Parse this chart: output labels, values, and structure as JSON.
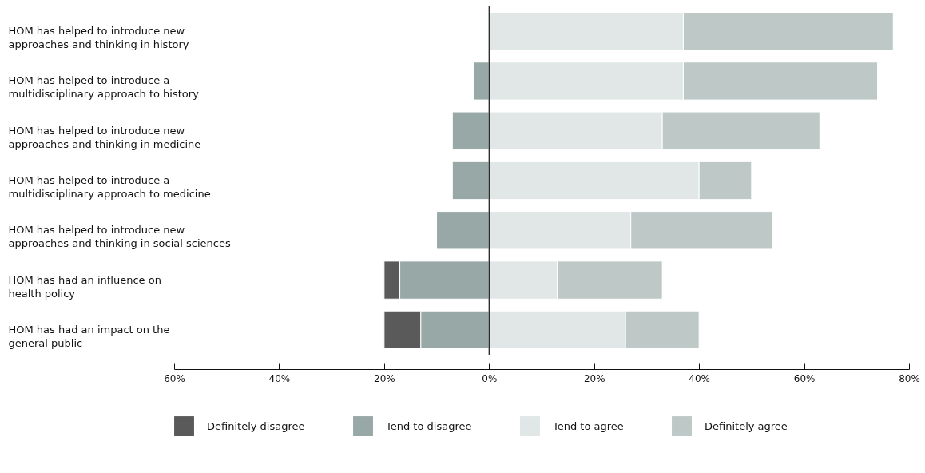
{
  "chart_data": {
    "type": "bar",
    "orientation": "horizontal",
    "stacked": true,
    "categories": [
      "HOM has helped to introduce new approaches and thinking in history",
      "HOM has helped to introduce a multidisciplinary approach to history",
      "HOM has helped to introduce new approaches and thinking in medicine",
      "HOM has helped to introduce a multidisciplinary approach to medicine",
      "HOM has helped to introduce new approaches and thinking in social sciences",
      "HOM has had an influence on health policy",
      "HOM has had an impact on the general public"
    ],
    "series": [
      {
        "name": "Definitely disagree",
        "color": "#5a5a5a",
        "values": [
          null,
          null,
          null,
          null,
          null,
          -3,
          -7
        ]
      },
      {
        "name": "Tend to disagree",
        "color": "#97a8a7",
        "values": [
          null,
          -3,
          -7,
          -7,
          -10,
          -17,
          -13
        ]
      },
      {
        "name": "Tend to agree",
        "color": "#e1e7e6",
        "values": [
          37,
          37,
          33,
          40,
          27,
          13,
          26
        ]
      },
      {
        "name": "Definitely agree",
        "color": "#bdc8c7",
        "values": [
          40,
          37,
          30,
          10,
          27,
          20,
          14
        ]
      }
    ],
    "xlim": [
      -60,
      80
    ],
    "xticks": [
      {
        "value": -60,
        "label": "60%"
      },
      {
        "value": -40,
        "label": "40%"
      },
      {
        "value": -20,
        "label": "20%"
      },
      {
        "value": 0,
        "label": "0%"
      },
      {
        "value": 20,
        "label": "20%"
      },
      {
        "value": 40,
        "label": "40%"
      },
      {
        "value": 60,
        "label": "60%"
      },
      {
        "value": 80,
        "label": "80%"
      }
    ],
    "ref_lines": [
      {
        "axis": "x",
        "value": 0,
        "color": "#111111"
      }
    ],
    "grid": false,
    "legend": "bottom"
  }
}
